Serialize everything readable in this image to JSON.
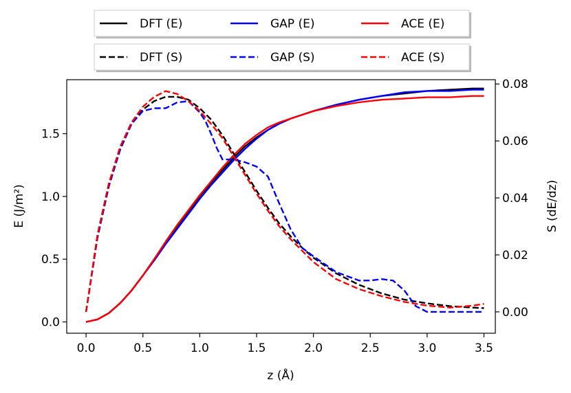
{
  "chart_data": {
    "type": "line",
    "title": "",
    "xlabel": "z (Å)",
    "ylabel_left": "E (J/m²)",
    "ylabel_right": "S (dE/dz)",
    "xlim": [
      -0.17,
      3.6
    ],
    "ylim_left": [
      -0.09,
      1.93
    ],
    "ylim_right": [
      -0.0075,
      0.0815
    ],
    "xticks": [
      0.0,
      0.5,
      1.0,
      1.5,
      2.0,
      2.5,
      3.0,
      3.5
    ],
    "xtick_labels": [
      "0.0",
      "0.5",
      "1.0",
      "1.5",
      "2.0",
      "2.5",
      "3.0",
      "3.5"
    ],
    "yticks_left": [
      0.0,
      0.5,
      1.0,
      1.5
    ],
    "ytick_labels_left": [
      "0.0",
      "0.5",
      "1.0",
      "1.5"
    ],
    "yticks_right": [
      0.0,
      0.02,
      0.04,
      0.06,
      0.08
    ],
    "ytick_labels_right": [
      "0.00",
      "0.02",
      "0.04",
      "0.06",
      "0.08"
    ],
    "grid": false,
    "legends": [
      {
        "placement": "top",
        "entries": [
          "DFT (E)",
          "GAP (E)",
          "ACE (E)"
        ]
      },
      {
        "placement": "top",
        "entries": [
          "DFT (S)",
          "GAP (S)",
          "ACE (S)"
        ]
      }
    ],
    "series": [
      {
        "name": "DFT (E)",
        "axis": "left",
        "color": "#000000",
        "dash": "solid",
        "x": [
          0.0,
          0.1,
          0.2,
          0.3,
          0.4,
          0.5,
          0.6,
          0.7,
          0.8,
          0.9,
          1.0,
          1.1,
          1.2,
          1.3,
          1.4,
          1.5,
          1.6,
          1.7,
          1.8,
          1.9,
          2.0,
          2.2,
          2.4,
          2.6,
          2.8,
          3.0,
          3.2,
          3.4,
          3.5
        ],
        "y": [
          0.0,
          0.02,
          0.07,
          0.15,
          0.25,
          0.37,
          0.5,
          0.63,
          0.76,
          0.88,
          1.0,
          1.11,
          1.21,
          1.31,
          1.4,
          1.47,
          1.53,
          1.58,
          1.62,
          1.65,
          1.68,
          1.73,
          1.77,
          1.8,
          1.82,
          1.84,
          1.85,
          1.86,
          1.86
        ]
      },
      {
        "name": "GAP (E)",
        "axis": "left",
        "color": "#0000ff",
        "dash": "solid",
        "x": [
          0.0,
          0.1,
          0.2,
          0.3,
          0.4,
          0.5,
          0.6,
          0.7,
          0.8,
          0.9,
          1.0,
          1.1,
          1.2,
          1.3,
          1.4,
          1.5,
          1.6,
          1.7,
          1.8,
          1.9,
          2.0,
          2.2,
          2.4,
          2.6,
          2.8,
          3.0,
          3.2,
          3.4,
          3.5
        ],
        "y": [
          0.0,
          0.02,
          0.07,
          0.15,
          0.25,
          0.37,
          0.49,
          0.62,
          0.74,
          0.86,
          0.98,
          1.09,
          1.19,
          1.29,
          1.38,
          1.46,
          1.53,
          1.58,
          1.62,
          1.65,
          1.68,
          1.73,
          1.77,
          1.8,
          1.83,
          1.84,
          1.84,
          1.85,
          1.85
        ]
      },
      {
        "name": "ACE (E)",
        "axis": "left",
        "color": "#ff0000",
        "dash": "solid",
        "x": [
          0.0,
          0.1,
          0.2,
          0.3,
          0.4,
          0.5,
          0.6,
          0.7,
          0.8,
          0.9,
          1.0,
          1.1,
          1.2,
          1.3,
          1.4,
          1.5,
          1.6,
          1.7,
          1.8,
          1.9,
          2.0,
          2.2,
          2.4,
          2.6,
          2.8,
          3.0,
          3.2,
          3.4,
          3.5
        ],
        "y": [
          0.0,
          0.02,
          0.07,
          0.15,
          0.25,
          0.37,
          0.5,
          0.64,
          0.77,
          0.89,
          1.01,
          1.12,
          1.23,
          1.33,
          1.42,
          1.49,
          1.55,
          1.59,
          1.62,
          1.65,
          1.68,
          1.72,
          1.75,
          1.77,
          1.78,
          1.79,
          1.79,
          1.8,
          1.8
        ]
      },
      {
        "name": "DFT (S)",
        "axis": "right",
        "color": "#000000",
        "dash": "dashed",
        "x": [
          0.0,
          0.1,
          0.2,
          0.3,
          0.4,
          0.5,
          0.6,
          0.7,
          0.8,
          0.9,
          1.0,
          1.1,
          1.2,
          1.3,
          1.4,
          1.5,
          1.6,
          1.7,
          1.8,
          1.9,
          2.0,
          2.2,
          2.4,
          2.6,
          2.8,
          3.0,
          3.2,
          3.4,
          3.5
        ],
        "y": [
          0.0,
          0.026,
          0.044,
          0.057,
          0.066,
          0.071,
          0.074,
          0.0755,
          0.0755,
          0.0745,
          0.0715,
          0.0675,
          0.062,
          0.0555,
          0.049,
          0.0425,
          0.0365,
          0.031,
          0.0265,
          0.0225,
          0.019,
          0.0135,
          0.0095,
          0.0065,
          0.0043,
          0.003,
          0.002,
          0.0015,
          0.0013
        ]
      },
      {
        "name": "GAP (S)",
        "axis": "right",
        "color": "#0000ff",
        "dash": "dashed",
        "x": [
          0.0,
          0.1,
          0.2,
          0.3,
          0.4,
          0.5,
          0.6,
          0.7,
          0.8,
          0.9,
          1.0,
          1.05,
          1.1,
          1.15,
          1.2,
          1.25,
          1.3,
          1.4,
          1.5,
          1.6,
          1.7,
          1.8,
          1.9,
          2.0,
          2.2,
          2.4,
          2.5,
          2.6,
          2.7,
          2.8,
          2.9,
          3.0,
          3.2,
          3.4,
          3.5
        ],
        "y": [
          0.0,
          0.026,
          0.044,
          0.057,
          0.066,
          0.0705,
          0.0715,
          0.0715,
          0.0735,
          0.074,
          0.07,
          0.067,
          0.0625,
          0.0575,
          0.0535,
          0.0535,
          0.0535,
          0.0525,
          0.051,
          0.0475,
          0.038,
          0.029,
          0.0225,
          0.0195,
          0.014,
          0.011,
          0.011,
          0.0115,
          0.011,
          0.0075,
          0.002,
          0.0,
          0.0,
          0.0,
          0.0
        ]
      },
      {
        "name": "ACE (S)",
        "axis": "right",
        "color": "#ff0000",
        "dash": "dashed",
        "x": [
          0.0,
          0.1,
          0.2,
          0.3,
          0.4,
          0.5,
          0.6,
          0.7,
          0.8,
          0.9,
          1.0,
          1.1,
          1.2,
          1.3,
          1.4,
          1.5,
          1.6,
          1.7,
          1.8,
          1.9,
          2.0,
          2.2,
          2.4,
          2.6,
          2.8,
          3.0,
          3.2,
          3.4,
          3.5
        ],
        "y": [
          0.0,
          0.027,
          0.045,
          0.058,
          0.0665,
          0.072,
          0.0755,
          0.0775,
          0.0765,
          0.074,
          0.0705,
          0.066,
          0.061,
          0.0545,
          0.048,
          0.0415,
          0.0355,
          0.03,
          0.0255,
          0.0215,
          0.0175,
          0.0115,
          0.008,
          0.0055,
          0.0035,
          0.0022,
          0.0015,
          0.0022,
          0.0028
        ]
      }
    ]
  }
}
